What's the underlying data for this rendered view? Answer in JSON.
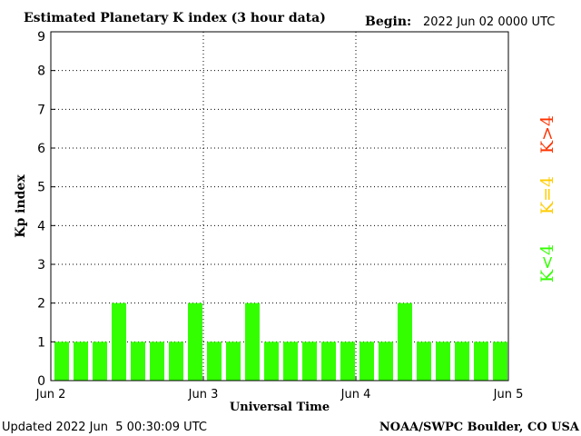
{
  "chart_data": {
    "type": "bar",
    "title": "Estimated Planetary K index (3 hour data)",
    "begin_label": "Begin:",
    "begin_value": "2022 Jun 02 0000 UTC",
    "xlabel": "Universal Time",
    "ylabel": "Kp index",
    "ylim": [
      0,
      9
    ],
    "yticks": [
      "0",
      "1",
      "2",
      "3",
      "4",
      "5",
      "6",
      "7",
      "8",
      "9"
    ],
    "xticks": [
      "Jun 2",
      "Jun 3",
      "Jun 4",
      "Jun 5"
    ],
    "grid": true,
    "bar_color": "#33ff00",
    "values": [
      1,
      1,
      1,
      2,
      1,
      1,
      1,
      2,
      1,
      1,
      2,
      1,
      1,
      1,
      1,
      1,
      1,
      1,
      2,
      1,
      1,
      1,
      1,
      1
    ],
    "legend": [
      {
        "label": "K<4",
        "color": "#33ff00"
      },
      {
        "label": "K=4",
        "color": "#ffcc00"
      },
      {
        "label": "K>4",
        "color": "#ff3300"
      }
    ]
  },
  "footer": {
    "updated": "Updated 2022 Jun  5 00:30:09 UTC",
    "source": "NOAA/SWPC Boulder, CO USA"
  }
}
